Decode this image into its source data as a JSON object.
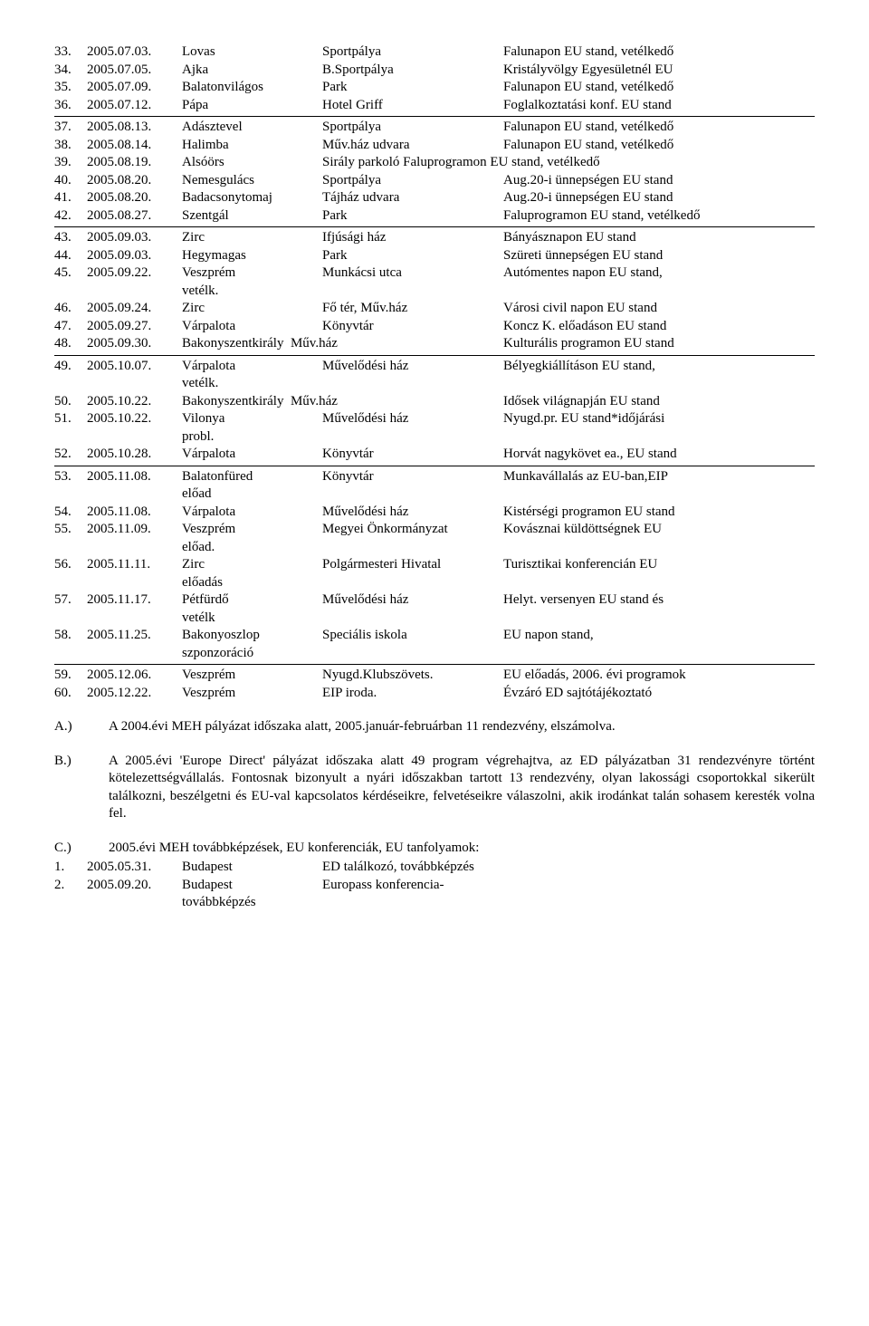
{
  "rows": [
    {
      "n": "33.",
      "date": "2005.07.03.",
      "place": "Lovas",
      "venue": "Sportpálya",
      "event": "Falunapon EU stand, vetélkedő"
    },
    {
      "n": "34.",
      "date": "2005.07.05.",
      "place": "Ajka",
      "venue": "B.Sportpálya",
      "event": "Kristályvölgy Egyesületnél EU"
    },
    {
      "n": "35.",
      "date": "2005.07.09.",
      "place": "Balatonvilágos",
      "venue": "Park",
      "event": "Falunapon EU stand, vetélkedő"
    },
    {
      "n": "36.",
      "date": "2005.07.12.",
      "place": "Pápa",
      "venue": "Hotel Griff",
      "event": "Foglalkoztatási konf. EU stand"
    },
    {
      "n": "37.",
      "date": "2005.08.13.",
      "place": "Adásztevel",
      "venue": "Sportpálya",
      "event": "Falunapon EU stand, vetélkedő"
    },
    {
      "n": "38.",
      "date": "2005.08.14.",
      "place": "Halimba",
      "venue": "Műv.ház udvara",
      "event": "Falunapon EU stand, vetélkedő"
    },
    {
      "n": "39.",
      "date": "2005.08.19.",
      "place": "Alsóörs",
      "venue": "Sirály parkoló",
      "event": "Faluprogramon EU stand, vetélkedő",
      "mergeVenueEvent": true
    },
    {
      "n": "40.",
      "date": "2005.08.20.",
      "place": "Nemesgulács",
      "venue": "Sportpálya",
      "event": "Aug.20-i ünnepségen EU stand"
    },
    {
      "n": "41.",
      "date": "2005.08.20.",
      "place": "Badacsonytomaj",
      "venue": "Tájház udvara",
      "event": "Aug.20-i ünnepségen EU stand"
    },
    {
      "n": "42.",
      "date": "2005.08.27.",
      "place": "Szentgál",
      "venue": "Park",
      "event": "Faluprogramon EU stand, vetélkedő"
    },
    {
      "n": "43.",
      "date": "2005.09.03.",
      "place": "Zirc",
      "venue": "Ifjúsági ház",
      "event": "Bányásznapon EU stand"
    },
    {
      "n": "44.",
      "date": "2005.09.03.",
      "place": "Hegymagas",
      "venue": "Park",
      "event": "Szüreti ünnepségen EU stand"
    },
    {
      "n": "45.",
      "date": "2005.09.22.",
      "place": "Veszprém",
      "venue": "Munkácsi utca",
      "event": "Autómentes napon EU stand,",
      "cont": "vetélk."
    },
    {
      "n": "46.",
      "date": "2005.09.24.",
      "place": "Zirc",
      "venue": "Fő tér, Műv.ház",
      "event": "Városi civil napon EU stand"
    },
    {
      "n": "47.",
      "date": "2005.09.27.",
      "place": "Várpalota",
      "venue": "Könyvtár",
      "event": "Koncz K. előadáson EU stand"
    },
    {
      "n": "48.",
      "date": "2005.09.30.",
      "place": "Bakonyszentkirály",
      "venue": "Műv.ház",
      "event": "Kulturális programon EU stand",
      "mergePlaceVenue": true
    },
    {
      "n": "49.",
      "date": "2005.10.07.",
      "place": "Várpalota",
      "venue": "Művelődési ház",
      "event": "Bélyegkiállításon EU stand,",
      "cont": "vetélk."
    },
    {
      "n": "50.",
      "date": "2005.10.22.",
      "place": "Bakonyszentkirály",
      "venue": "Műv.ház",
      "event": "Idősek világnapján EU stand",
      "mergePlaceVenue": true
    },
    {
      "n": "51.",
      "date": "2005.10.22.",
      "place": "Vilonya",
      "venue": "Művelődési ház",
      "event": "Nyugd.pr. EU stand*időjárási",
      "cont": "probl."
    },
    {
      "n": "52.",
      "date": "2005.10.28.",
      "place": "Várpalota",
      "venue": "Könyvtár",
      "event": "Horvát nagykövet ea., EU stand"
    },
    {
      "n": "53.",
      "date": "2005.11.08.",
      "place": "Balatonfüred",
      "venue": "Könyvtár",
      "event": "Munkavállalás az EU-ban,EIP",
      "cont": "előad"
    },
    {
      "n": "54.",
      "date": "2005.11.08.",
      "place": "Várpalota",
      "venue": "Művelődési ház",
      "event": "Kistérségi programon EU stand"
    },
    {
      "n": "55.",
      "date": "2005.11.09.",
      "place": "Veszprém",
      "venue": "Megyei Önkormányzat",
      "event": "Kovásznai küldöttségnek EU",
      "cont": "előad."
    },
    {
      "n": "56.",
      "date": "2005.11.11.",
      "place": "Zirc",
      "venue": "Polgármesteri Hivatal",
      "event": "Turisztikai konferencián EU",
      "cont": "előadás"
    },
    {
      "n": "57.",
      "date": "2005.11.17.",
      "place": "Pétfürdő",
      "venue": "Művelődési ház",
      "event": "Helyt. versenyen EU stand és",
      "cont": "vetélk"
    },
    {
      "n": "58.",
      "date": "2005.11.25.",
      "place": "Bakonyoszlop",
      "venue": "Speciális iskola",
      "event": "EU napon stand,",
      "cont": "szponzoráció"
    },
    {
      "n": "59.",
      "date": "2005.12.06.",
      "place": "Veszprém",
      "venue": "Nyugd.Klubszövets.",
      "event": "EU előadás, 2006. évi programok"
    },
    {
      "n": "60.",
      "date": "2005.12.22.",
      "place": "Veszprém",
      "venue": "EIP iroda.",
      "event": "Évzáró ED sajtótájékoztató"
    }
  ],
  "rulesAfter": [
    "36.",
    "42.",
    "48.",
    "52.",
    "58."
  ],
  "paraA": {
    "label": "A.)",
    "text": "A 2004.évi MEH pályázat időszaka alatt, 2005.január-februárban 11 rendezvény, elszámolva."
  },
  "paraB": {
    "label": "B.)",
    "text": "A 2005.évi 'Europe Direct' pályázat időszaka alatt 49 program végrehajtva, az ED pályázatban 31 rendezvényre történt kötelezettségvállalás. Fontosnak bizonyult a nyári időszakban tartott 13 rendezvény, olyan lakossági csoportokkal sikerült találkozni, beszélgetni és EU-val kapcsolatos kérdéseikre, felvetéseikre válaszolni, akik irodánkat talán sohasem keresték volna fel."
  },
  "paraC": {
    "label": "C.)",
    "text": "2005.évi MEH továbbképzések, EU konferenciák, EU tanfolyamok:"
  },
  "crows": [
    {
      "n": "1.",
      "d": "2005.05.31.",
      "p": "Budapest",
      "e": "ED találkozó, továbbképzés"
    },
    {
      "n": "2.",
      "d": "2005.09.20.",
      "p": "Budapest",
      "e": "Europass konferencia-",
      "cont": "továbbképzés"
    }
  ]
}
